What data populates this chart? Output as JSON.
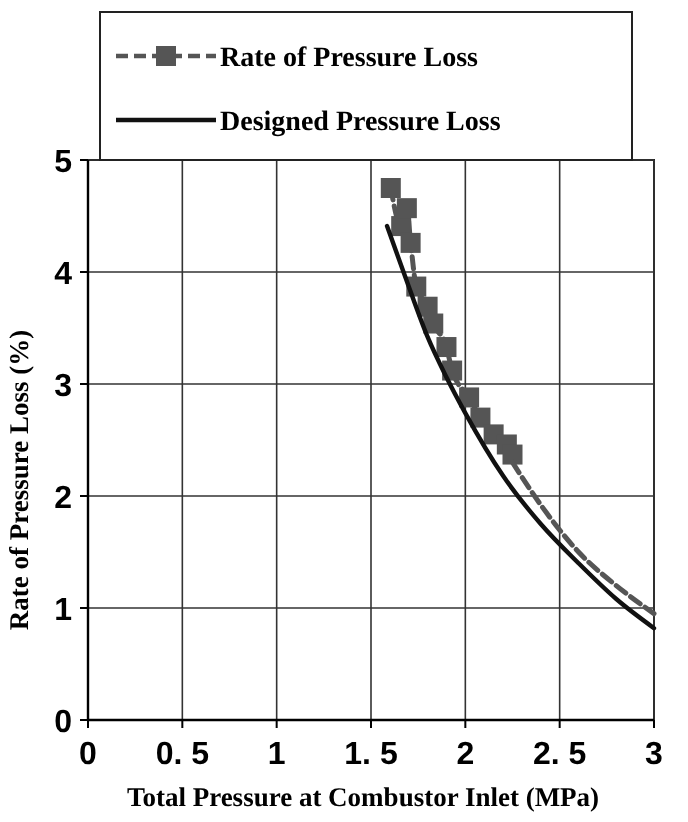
{
  "chart_data": {
    "type": "line",
    "xlabel": "Total Pressure at Combustor Inlet (MPa)",
    "ylabel": "Rate of Pressure Loss (%)",
    "xlim": [
      0,
      3
    ],
    "xticks": [
      0,
      {
        "value": 0.5,
        "label": "0. 5"
      },
      1,
      {
        "value": 1.5,
        "label": "1. 5"
      },
      2,
      {
        "value": 2.5,
        "label": "2. 5"
      },
      3
    ],
    "ylim": [
      0,
      5
    ],
    "yticks": [
      0,
      1,
      2,
      3,
      4,
      5
    ],
    "grid": true,
    "legend": "top",
    "series": [
      {
        "name": "Rate of Pressure Loss",
        "color": "#555555",
        "marker": "square",
        "line_style": "dashed",
        "x": [
          1.605,
          1.66,
          1.69,
          1.71,
          1.74,
          1.8,
          1.83,
          1.9,
          1.93,
          2.02,
          2.08,
          2.15,
          2.22,
          2.25
        ],
        "values": [
          4.75,
          4.41,
          4.57,
          4.26,
          3.87,
          3.69,
          3.54,
          3.33,
          3.12,
          2.88,
          2.7,
          2.55,
          2.46,
          2.37
        ]
      },
      {
        "color": "#555555",
        "marker": "none",
        "line_style": "dashed",
        "x": [
          2.25,
          2.4,
          2.6,
          2.8,
          3.0
        ],
        "values": [
          2.3,
          1.92,
          1.5,
          1.2,
          0.95
        ]
      },
      {
        "name": "Designed Pressure Loss",
        "color": "#111111",
        "marker": "none",
        "line_style": "solid",
        "x": [
          1.585,
          1.7,
          1.8,
          1.9,
          2.0,
          2.2,
          2.4,
          2.6,
          2.8,
          3.0
        ],
        "values": [
          4.41,
          3.87,
          3.42,
          3.06,
          2.74,
          2.18,
          1.75,
          1.4,
          1.08,
          0.82
        ]
      }
    ]
  }
}
